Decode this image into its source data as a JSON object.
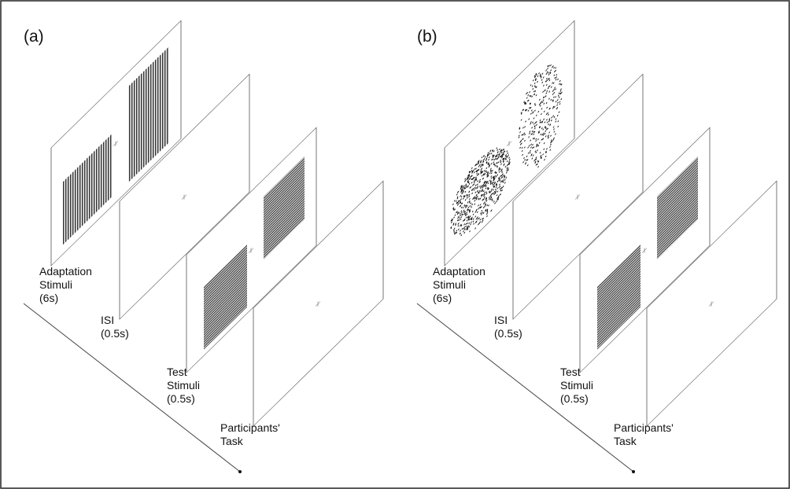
{
  "panels": [
    {
      "label": "(a)",
      "frames": [
        [
          "Adaptation",
          "Stimuli",
          "(6s)"
        ],
        [
          "ISI",
          "(0.5s)"
        ],
        [
          "Test",
          "Stimuli",
          "(0.5s)"
        ],
        [
          "Participants'",
          "Task"
        ]
      ]
    },
    {
      "label": "(b)",
      "frames": [
        [
          "Adaptation",
          "Stimuli",
          "(6s)"
        ],
        [
          "ISI",
          "(0.5s)"
        ],
        [
          "Test",
          "Stimuli",
          "(0.5s)"
        ],
        [
          "Participants'",
          "Task"
        ]
      ]
    }
  ]
}
